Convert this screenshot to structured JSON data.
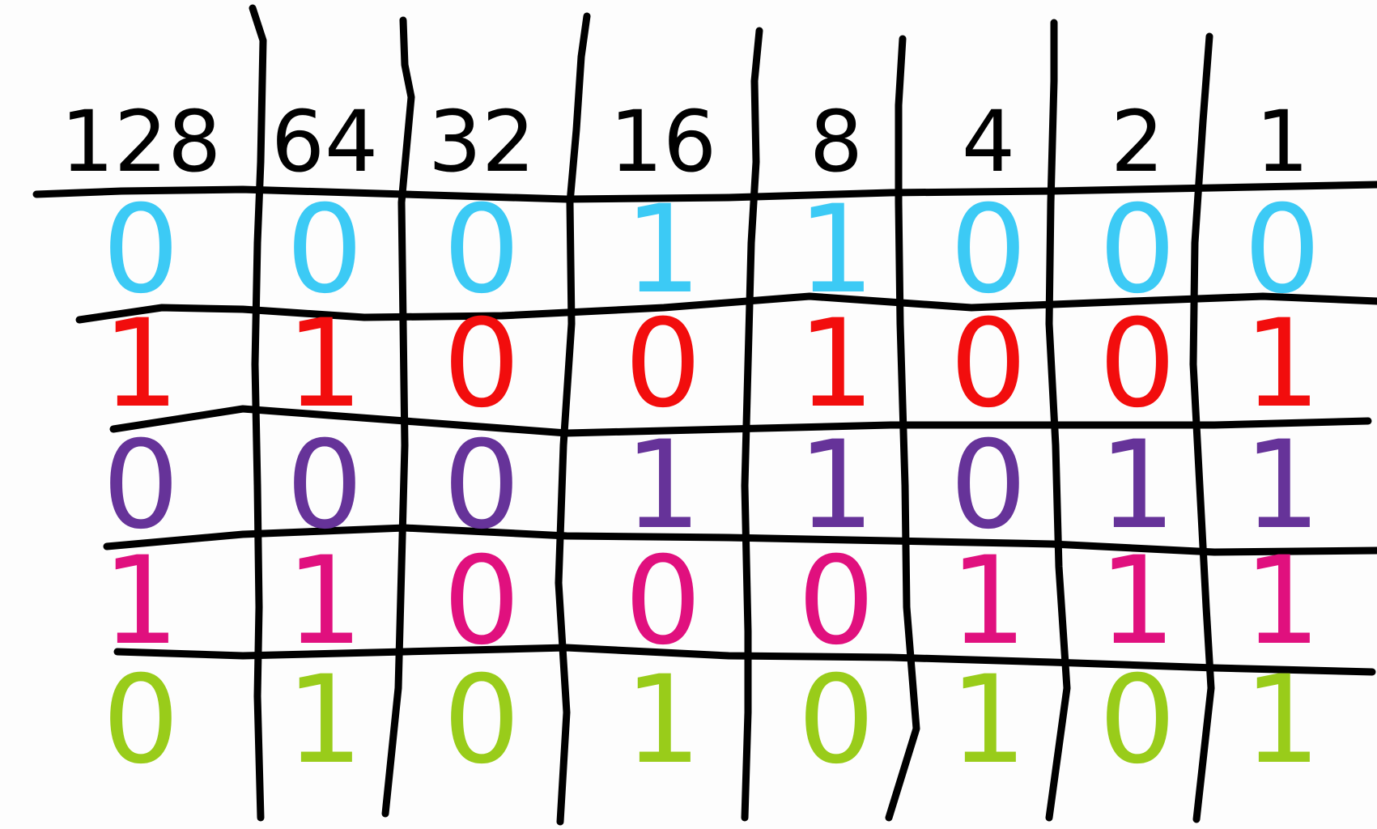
{
  "headers": [
    "128",
    "64",
    "32",
    "16",
    "8",
    "4",
    "2",
    "1"
  ],
  "rows": [
    {
      "color": "#3ccaf5",
      "bits": [
        "0",
        "0",
        "0",
        "1",
        "1",
        "0",
        "0",
        "0"
      ]
    },
    {
      "color": "#f20d0d",
      "bits": [
        "1",
        "1",
        "0",
        "0",
        "1",
        "0",
        "0",
        "1"
      ]
    },
    {
      "color": "#663399",
      "bits": [
        "0",
        "0",
        "0",
        "1",
        "1",
        "0",
        "1",
        "1"
      ]
    },
    {
      "color": "#e0107e",
      "bits": [
        "1",
        "1",
        "0",
        "0",
        "0",
        "1",
        "1",
        "1"
      ]
    },
    {
      "color": "#99cc1a",
      "bits": [
        "0",
        "1",
        "0",
        "1",
        "0",
        "1",
        "0",
        "1"
      ]
    }
  ],
  "line_color": "#000000"
}
